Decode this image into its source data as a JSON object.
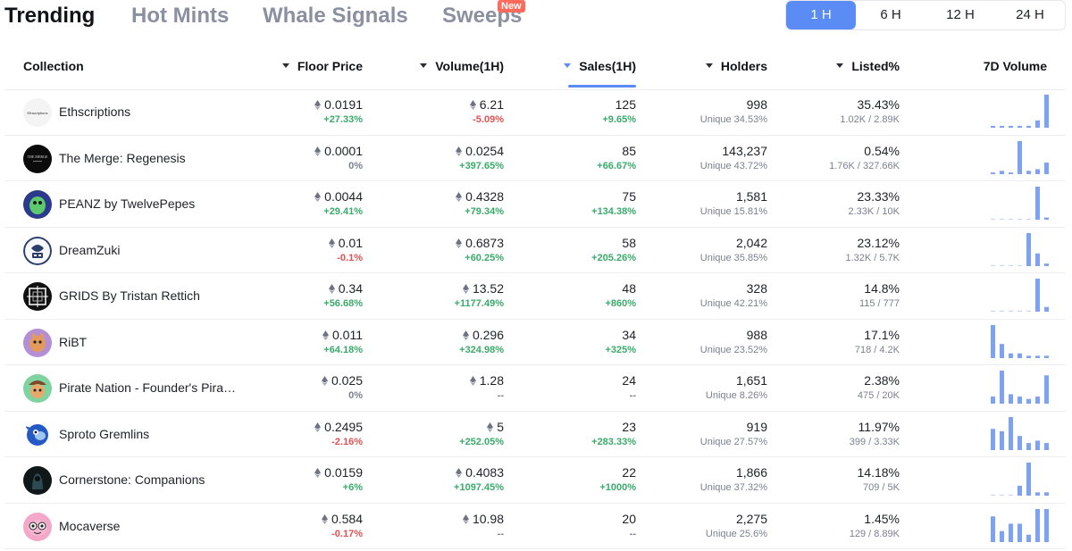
{
  "nav": {
    "tabs": [
      "Trending",
      "Hot Mints",
      "Whale Signals",
      "Sweeps"
    ],
    "new_badge": "New",
    "timeframes": [
      "1 H",
      "6 H",
      "12 H",
      "24 H"
    ],
    "active_timeframe": "1 H"
  },
  "table": {
    "headers": {
      "collection": "Collection",
      "floor": "Floor Price",
      "volume": "Volume(1H)",
      "sales": "Sales(1H)",
      "holders": "Holders",
      "listed": "Listed%",
      "vol7d": "7D Volume"
    },
    "rows": [
      {
        "name": "Ethscriptions",
        "floor": "0.0191",
        "floor_chg": "+27.33%",
        "floor_dir": "pos",
        "vol": "6.21",
        "vol_chg": "-5.09%",
        "vol_dir": "neg",
        "sales": "125",
        "sales_chg": "+9.65%",
        "sales_dir": "pos",
        "holders": "998",
        "unique": "Unique 34.53%",
        "listed": "35.43%",
        "listed_ratio": "1.02K / 2.89K",
        "spark": [
          1,
          1,
          1,
          1,
          1,
          4,
          18
        ],
        "avatar": "ethscriptions",
        "avatar_text": "Ethscriptions"
      },
      {
        "name": "The Merge: Regenesis",
        "floor": "0.0001",
        "floor_chg": "0%",
        "floor_dir": "neu",
        "vol": "0.0254",
        "vol_chg": "+397.65%",
        "vol_dir": "pos",
        "sales": "85",
        "sales_chg": "+66.67%",
        "sales_dir": "pos",
        "holders": "143,237",
        "unique": "Unique 43.72%",
        "listed": "0.54%",
        "listed_ratio": "1.76K / 327.66K",
        "spark": [
          1,
          2,
          1,
          20,
          2,
          3,
          7
        ],
        "avatar": "merge",
        "avatar_text": "THE MERGE"
      },
      {
        "name": "PEANZ by TwelvePepes",
        "floor": "0.0044",
        "floor_chg": "+29.41%",
        "floor_dir": "pos",
        "vol": "0.4328",
        "vol_chg": "+79.34%",
        "vol_dir": "pos",
        "sales": "75",
        "sales_chg": "+134.38%",
        "sales_dir": "pos",
        "holders": "1,581",
        "unique": "Unique 15.81%",
        "listed": "23.33%",
        "listed_ratio": "2.33K / 10K",
        "spark": [
          0,
          0,
          0,
          0,
          0,
          15,
          1
        ],
        "avatar": "peanz",
        "avatar_text": ""
      },
      {
        "name": "DreamZuki",
        "floor": "0.01",
        "floor_chg": "-0.1%",
        "floor_dir": "neg",
        "vol": "0.6873",
        "vol_chg": "+60.25%",
        "vol_dir": "pos",
        "sales": "58",
        "sales_chg": "+205.26%",
        "sales_dir": "pos",
        "holders": "2,042",
        "unique": "Unique 35.85%",
        "listed": "23.12%",
        "listed_ratio": "1.32K / 5.7K",
        "spark": [
          0,
          0,
          0,
          0,
          13,
          5,
          1
        ],
        "avatar": "dreamzuki",
        "avatar_text": ""
      },
      {
        "name": "GRIDS By Tristan Rettich",
        "floor": "0.34",
        "floor_chg": "+56.68%",
        "floor_dir": "pos",
        "vol": "13.52",
        "vol_chg": "+1177.49%",
        "vol_dir": "pos",
        "sales": "48",
        "sales_chg": "+860%",
        "sales_dir": "pos",
        "holders": "328",
        "unique": "Unique 42.21%",
        "listed": "14.8%",
        "listed_ratio": "115 / 777",
        "spark": [
          0,
          0,
          0,
          0,
          0,
          14,
          2
        ],
        "avatar": "grids",
        "avatar_text": ""
      },
      {
        "name": "RiBT",
        "floor": "0.011",
        "floor_chg": "+64.18%",
        "floor_dir": "pos",
        "vol": "0.296",
        "vol_chg": "+324.98%",
        "vol_dir": "pos",
        "sales": "34",
        "sales_chg": "+325%",
        "sales_dir": "pos",
        "holders": "988",
        "unique": "Unique 23.52%",
        "listed": "17.1%",
        "listed_ratio": "718 / 4.2K",
        "spark": [
          14,
          6,
          2,
          2,
          1,
          1,
          1
        ],
        "avatar": "ribt",
        "avatar_text": ""
      },
      {
        "name": "Pirate Nation - Founder's Pira…",
        "floor": "0.025",
        "floor_chg": "0%",
        "floor_dir": "neu",
        "vol": "1.28",
        "vol_chg": "--",
        "vol_dir": "neu",
        "sales": "24",
        "sales_chg": "--",
        "sales_dir": "neu",
        "holders": "1,651",
        "unique": "Unique 8.26%",
        "listed": "2.38%",
        "listed_ratio": "475 / 20K",
        "spark": [
          3,
          14,
          4,
          3,
          2,
          3,
          12
        ],
        "avatar": "pirate",
        "avatar_text": ""
      },
      {
        "name": "Sproto Gremlins",
        "floor": "0.2495",
        "floor_chg": "-2.16%",
        "floor_dir": "neg",
        "vol": "5",
        "vol_chg": "+252.05%",
        "vol_dir": "pos",
        "sales": "23",
        "sales_chg": "+283.33%",
        "sales_dir": "pos",
        "holders": "919",
        "unique": "Unique 27.57%",
        "listed": "11.97%",
        "listed_ratio": "399 / 3.33K",
        "spark": [
          9,
          8,
          14,
          6,
          3,
          4,
          3
        ],
        "avatar": "sproto",
        "avatar_text": ""
      },
      {
        "name": "Cornerstone: Companions",
        "floor": "0.0159",
        "floor_chg": "+6%",
        "floor_dir": "pos",
        "vol": "0.4083",
        "vol_chg": "+1097.45%",
        "vol_dir": "pos",
        "sales": "22",
        "sales_chg": "+1000%",
        "sales_dir": "pos",
        "holders": "1,866",
        "unique": "Unique 37.32%",
        "listed": "14.18%",
        "listed_ratio": "709 / 5K",
        "spark": [
          0,
          0,
          0,
          3,
          10,
          1,
          1
        ],
        "avatar": "cornerstone",
        "avatar_text": ""
      },
      {
        "name": "Mocaverse",
        "floor": "0.584",
        "floor_chg": "-0.17%",
        "floor_dir": "neg",
        "vol": "10.98",
        "vol_chg": "--",
        "vol_dir": "neu",
        "sales": "20",
        "sales_chg": "--",
        "sales_dir": "neu",
        "holders": "2,275",
        "unique": "Unique 25.6%",
        "listed": "1.45%",
        "listed_ratio": "129 / 8.89K",
        "spark": [
          7,
          3,
          5,
          5,
          2,
          9,
          9
        ],
        "avatar": "moca",
        "avatar_text": ""
      }
    ]
  },
  "colors": {
    "accent": "#5b8cf5",
    "positive": "#3aaa6c",
    "negative": "#e25252",
    "spark": "#7da2f5"
  }
}
